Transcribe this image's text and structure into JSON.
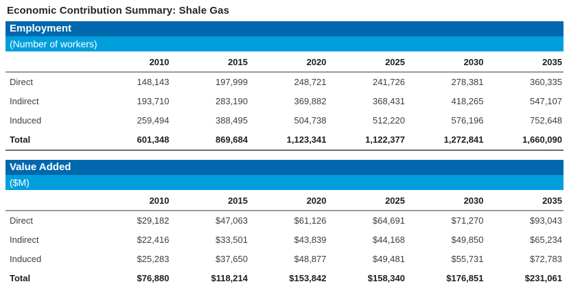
{
  "page_title": "Economic Contribution Summary: Shale Gas",
  "colors": {
    "banner_dark_blue": "#0168AD",
    "banner_light_blue": "#009FDC",
    "header_rule_gray": "#9a9a9a",
    "bottom_rule_gray": "#6b6b6b"
  },
  "years": [
    "2010",
    "2015",
    "2020",
    "2025",
    "2030",
    "2035"
  ],
  "sections": [
    {
      "title": "Employment",
      "subtitle": "(Number of workers)",
      "rows": [
        {
          "label": "Direct",
          "bold": false,
          "values": [
            "148,143",
            "197,999",
            "248,721",
            "241,726",
            "278,381",
            "360,335"
          ]
        },
        {
          "label": "Indirect",
          "bold": false,
          "values": [
            "193,710",
            "283,190",
            "369,882",
            "368,431",
            "418,265",
            "547,107"
          ]
        },
        {
          "label": "Induced",
          "bold": false,
          "values": [
            "259,494",
            "388,495",
            "504,738",
            "512,220",
            "576,196",
            "752,648"
          ]
        },
        {
          "label": "Total",
          "bold": true,
          "values": [
            "601,348",
            "869,684",
            "1,123,341",
            "1,122,377",
            "1,272,841",
            "1,660,090"
          ]
        }
      ]
    },
    {
      "title": "Value Added",
      "subtitle": "($M)",
      "rows": [
        {
          "label": "Direct",
          "bold": false,
          "values": [
            "$29,182",
            "$47,063",
            "$61,126",
            "$64,691",
            "$71,270",
            "$93,043"
          ]
        },
        {
          "label": "Indirect",
          "bold": false,
          "values": [
            "$22,416",
            "$33,501",
            "$43,839",
            "$44,168",
            "$49,850",
            "$65,234"
          ]
        },
        {
          "label": "Induced",
          "bold": false,
          "values": [
            "$25,283",
            "$37,650",
            "$48,877",
            "$49,481",
            "$55,731",
            "$72,783"
          ]
        },
        {
          "label": "Total",
          "bold": true,
          "values": [
            "$76,880",
            "$118,214",
            "$153,842",
            "$158,340",
            "$176,851",
            "$231,061"
          ]
        }
      ]
    }
  ]
}
